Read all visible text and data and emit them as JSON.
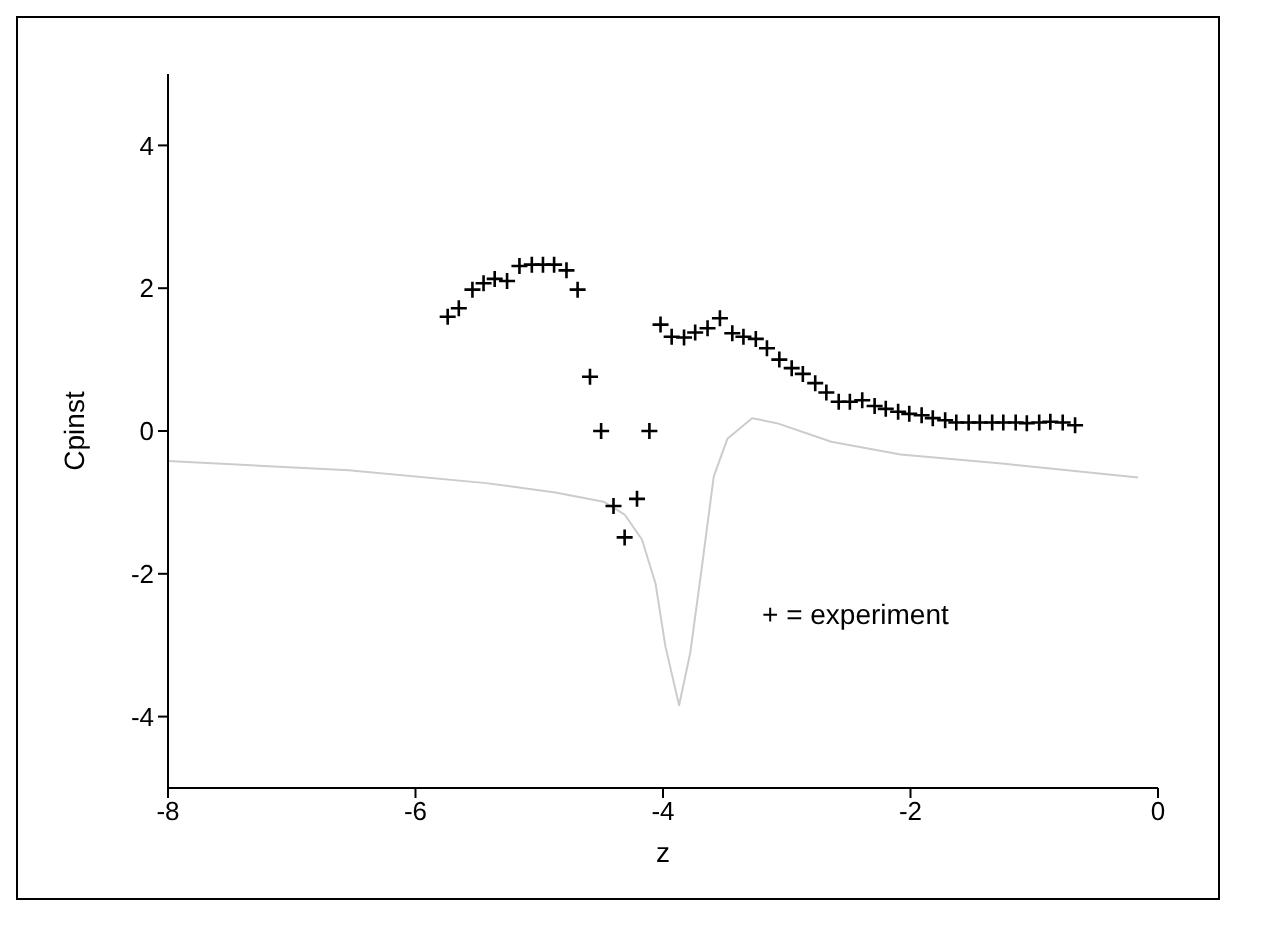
{
  "chart_data": {
    "type": "scatter",
    "xlabel": "z",
    "ylabel": "Cpinst",
    "xlim": [
      -8,
      0
    ],
    "xticks": [
      -8,
      -6,
      -4,
      -2,
      0
    ],
    "ylim": [
      -5,
      5
    ],
    "yticks": [
      -4,
      -2,
      0,
      2,
      4
    ],
    "grid": false,
    "legend": false,
    "annotations": [
      "+ = experiment"
    ],
    "series": [
      {
        "marker": "cross",
        "color": "#000000",
        "x": [
          -5.74,
          -5.65,
          -5.54,
          -5.45,
          -5.36,
          -5.26,
          -5.16,
          -5.06,
          -4.97,
          -4.88,
          -4.78,
          -4.69,
          -4.59,
          -4.5,
          -4.4,
          -4.31,
          -4.21,
          -4.11,
          -4.02,
          -3.93,
          -3.83,
          -3.74,
          -3.64,
          -3.54,
          -3.44,
          -3.35,
          -3.25,
          -3.16,
          -3.06,
          -2.96,
          -2.87,
          -2.77,
          -2.68,
          -2.58,
          -2.49,
          -2.39,
          -2.29,
          -2.2,
          -2.1,
          -2.01,
          -1.91,
          -1.82,
          -1.72,
          -1.63,
          -1.53,
          -1.44,
          -1.34,
          -1.25,
          -1.15,
          -1.06,
          -0.96,
          -0.87,
          -0.77,
          -0.67
        ],
        "values": [
          1.6,
          1.72,
          1.98,
          2.07,
          2.13,
          2.1,
          2.31,
          2.33,
          2.33,
          2.33,
          2.25,
          1.98,
          0.76,
          0,
          -1.05,
          -1.49,
          -0.95,
          0,
          1.49,
          1.32,
          1.31,
          1.38,
          1.44,
          1.58,
          1.37,
          1.32,
          1.29,
          1.16,
          1,
          0.88,
          0.8,
          0.67,
          0.54,
          0.41,
          0.41,
          0.43,
          0.35,
          0.31,
          0.27,
          0.24,
          0.22,
          0.18,
          0.15,
          0.12,
          0.12,
          0.12,
          0.12,
          0.12,
          0.12,
          0.11,
          0.12,
          0.13,
          0.12,
          0.08
        ]
      },
      {
        "type": "line",
        "marker": "none",
        "line_style": "solid",
        "color": "#cccccc",
        "x": [
          -8,
          -6.54,
          -5.43,
          -4.87,
          -4.48,
          -4.31,
          -4.17,
          -4.06,
          -3.98,
          -3.87,
          -3.78,
          -3.69,
          -3.59,
          -3.48,
          -3.28,
          -3.08,
          -2.64,
          -2.08,
          -1.24,
          -0.16
        ],
        "values": [
          -0.42,
          -0.55,
          -0.73,
          -0.86,
          -0.99,
          -1.17,
          -1.52,
          -2.14,
          -3.02,
          -3.84,
          -3.11,
          -1.96,
          -0.64,
          -0.11,
          0.18,
          0.11,
          -0.15,
          -0.33,
          -0.46,
          -0.65
        ]
      }
    ]
  }
}
